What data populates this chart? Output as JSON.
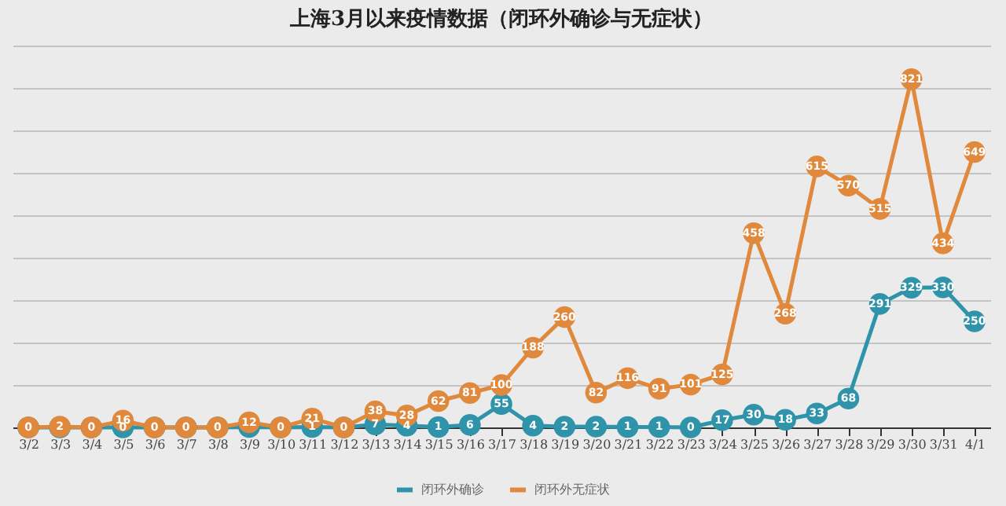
{
  "chart_data": {
    "type": "line",
    "title": "上海3月以来疫情数据（闭环外确诊与无症状）",
    "categories": [
      "3/2",
      "3/3",
      "3/4",
      "3/5",
      "3/6",
      "3/7",
      "3/8",
      "3/9",
      "3/10",
      "3/11",
      "3/12",
      "3/13",
      "3/14",
      "3/15",
      "3/16",
      "3/17",
      "3/18",
      "3/19",
      "3/20",
      "3/21",
      "3/22",
      "3/23",
      "3/24",
      "3/25",
      "3/26",
      "3/27",
      "3/28",
      "3/29",
      "3/30",
      "3/31",
      "4/1"
    ],
    "series": [
      {
        "name": "闭环外确诊",
        "color": "#2f93aa",
        "values": [
          0,
          0,
          0,
          0,
          0,
          0,
          0,
          1,
          0,
          1,
          0,
          7,
          4,
          1,
          6,
          55,
          4,
          2,
          2,
          1,
          1,
          0,
          17,
          30,
          18,
          33,
          68,
          291,
          329,
          330,
          250
        ],
        "value_labels": [
          null,
          null,
          null,
          "0",
          null,
          null,
          null,
          null,
          null,
          "1",
          null,
          "7",
          "4",
          "1",
          "6",
          "55",
          "4",
          "2",
          "2",
          "1",
          "1",
          "0",
          "17",
          "30",
          "18",
          "33",
          "68",
          "291",
          "329",
          "330",
          "250"
        ]
      },
      {
        "name": "闭环外无症状",
        "color": "#e0893c",
        "values": [
          0,
          2,
          0,
          16,
          0,
          0,
          0,
          12,
          0,
          21,
          0,
          38,
          28,
          62,
          81,
          100,
          188,
          260,
          82,
          116,
          91,
          101,
          125,
          458,
          268,
          615,
          570,
          515,
          821,
          434,
          649
        ],
        "value_labels": [
          "0",
          "2",
          "0",
          "16",
          "0",
          "0",
          "0",
          "12",
          "0",
          "21",
          "0",
          "38",
          "28",
          "62",
          "81",
          "100",
          "188",
          "260",
          "82",
          "116",
          "91",
          "101",
          "125",
          "458",
          "268",
          "615",
          "570",
          "515",
          "821",
          "434",
          "649"
        ]
      }
    ],
    "ylim": [
      0,
      900
    ],
    "yticks": [
      0,
      100,
      200,
      300,
      400,
      500,
      600,
      700,
      800,
      900
    ],
    "grid": "y",
    "tick_labels": "x",
    "legend": "bottom",
    "marker": "circle"
  }
}
